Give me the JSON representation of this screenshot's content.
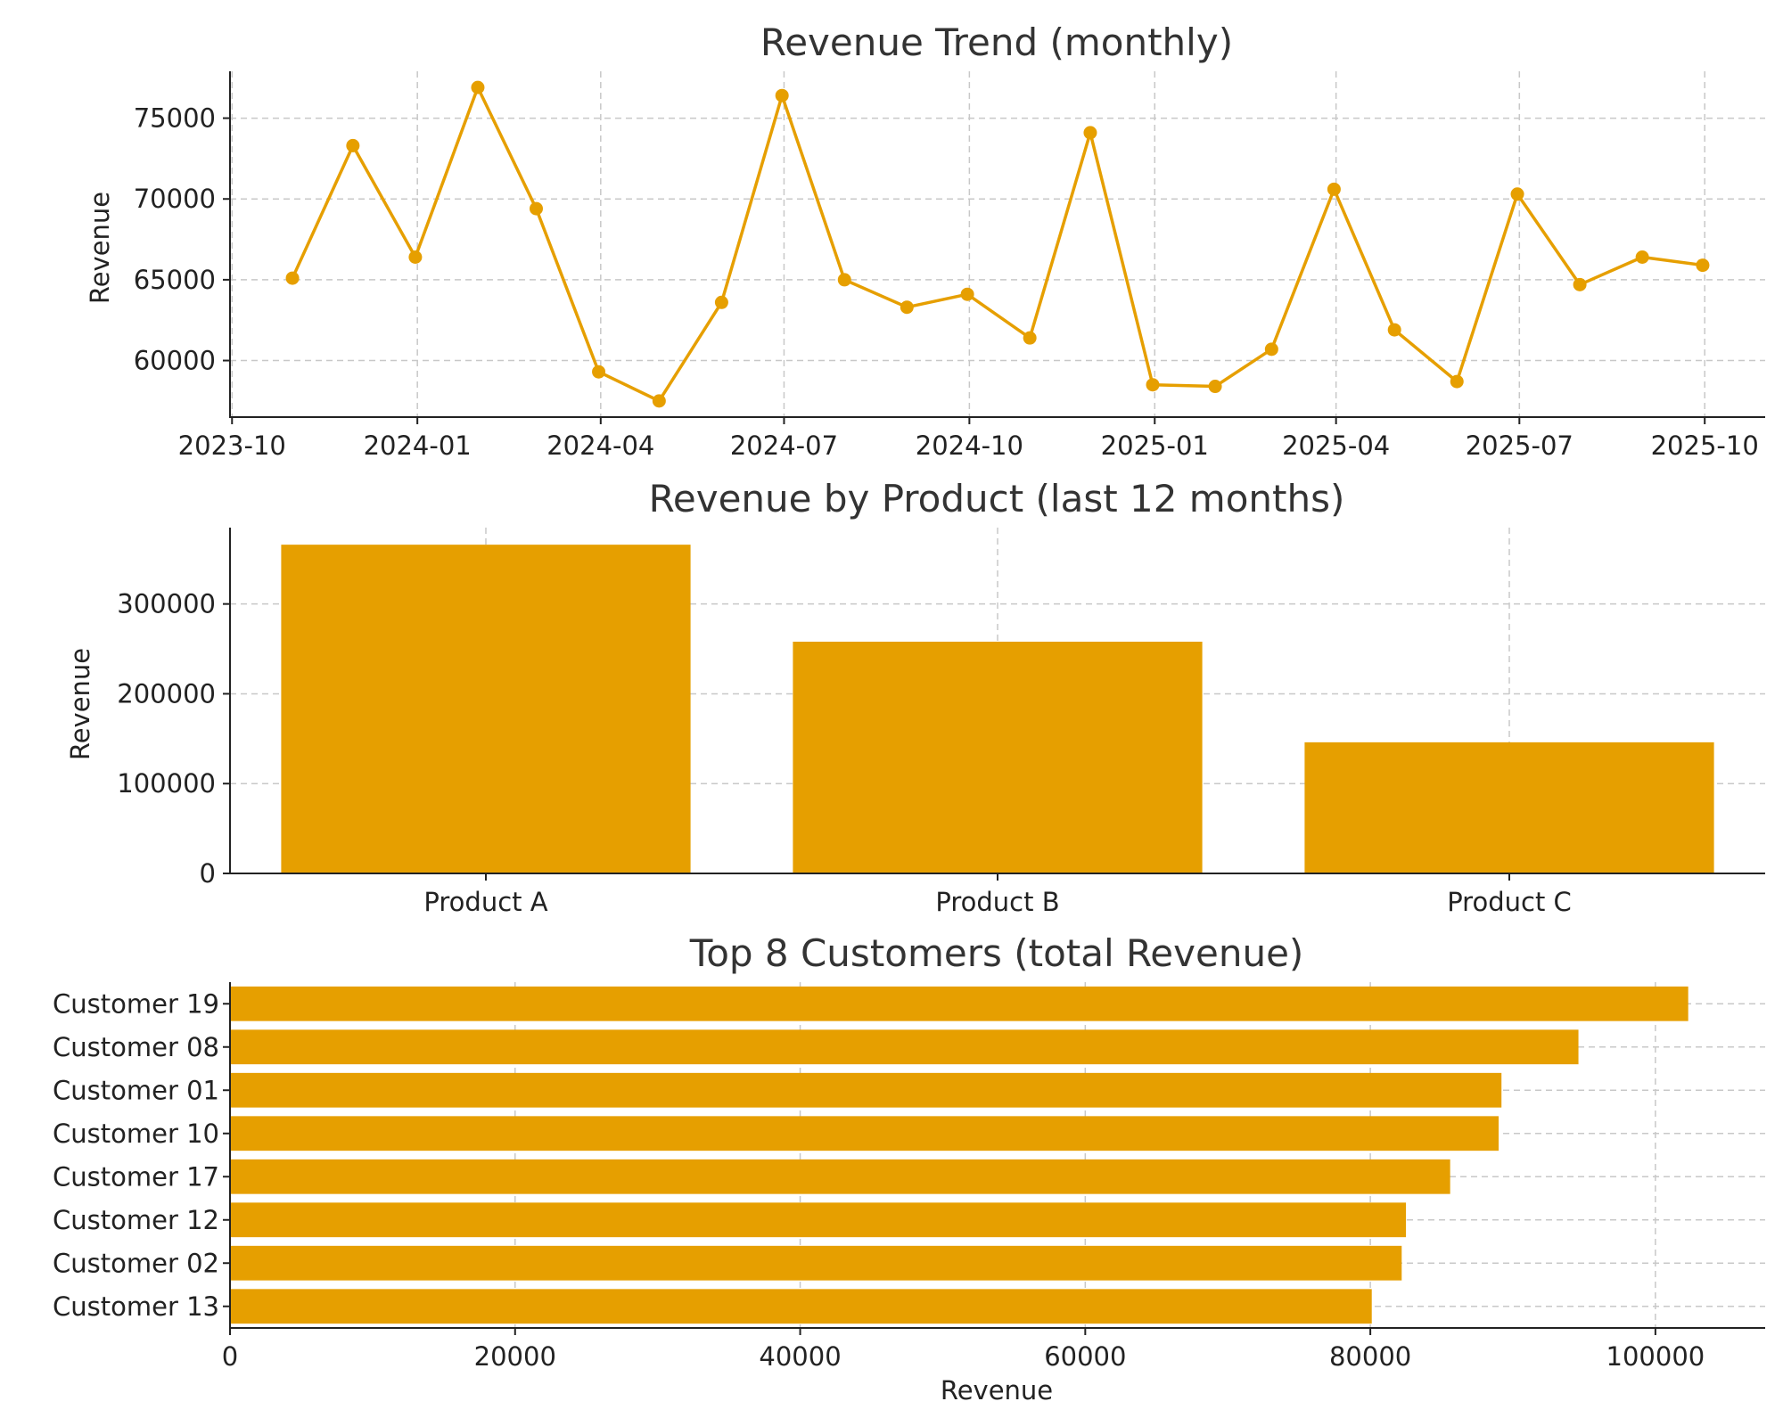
{
  "chart_data": [
    {
      "type": "line",
      "title": "Revenue Trend (monthly)",
      "xlabel": "",
      "ylabel": "Revenue",
      "color": "#E69F00",
      "grid": true,
      "xlim": [
        "2023-09-30",
        "2025-10-31"
      ],
      "ylim": [
        56500,
        77900
      ],
      "x_ticks": [
        "2023-10",
        "2024-01",
        "2024-04",
        "2024-07",
        "2024-10",
        "2025-01",
        "2025-04",
        "2025-07",
        "2025-10"
      ],
      "x_tick_dates": [
        "2023-10-01",
        "2024-01-01",
        "2024-04-01",
        "2024-07-01",
        "2024-10-01",
        "2025-01-01",
        "2025-04-01",
        "2025-07-01",
        "2025-10-01"
      ],
      "y_ticks": [
        60000,
        65000,
        70000,
        75000
      ],
      "x": [
        "2023-10-31",
        "2023-11-30",
        "2023-12-31",
        "2024-01-31",
        "2024-02-29",
        "2024-03-31",
        "2024-04-30",
        "2024-05-31",
        "2024-06-30",
        "2024-07-31",
        "2024-08-31",
        "2024-09-30",
        "2024-10-31",
        "2024-11-30",
        "2024-12-31",
        "2025-01-31",
        "2025-02-28",
        "2025-03-31",
        "2025-04-30",
        "2025-05-31",
        "2025-06-30",
        "2025-07-31",
        "2025-08-31",
        "2025-09-30"
      ],
      "values": [
        65100,
        73300,
        66400,
        76900,
        69400,
        59300,
        57500,
        63600,
        76400,
        65000,
        63300,
        64100,
        61400,
        74100,
        58500,
        58400,
        60700,
        70600,
        61900,
        58700,
        70300,
        64700,
        66400,
        65900
      ]
    },
    {
      "type": "bar",
      "title": "Revenue by Product (last 12 months)",
      "xlabel": "",
      "ylabel": "Revenue",
      "color": "#E69F00",
      "grid": true,
      "ylim": [
        0,
        385000
      ],
      "y_ticks": [
        0,
        100000,
        200000,
        300000
      ],
      "categories": [
        "Product A",
        "Product B",
        "Product C"
      ],
      "values": [
        366000,
        258000,
        146000
      ]
    },
    {
      "type": "bar",
      "orientation": "horizontal",
      "title": "Top 8 Customers (total Revenue)",
      "xlabel": "Revenue",
      "ylabel": "",
      "color": "#E69F00",
      "grid": true,
      "xlim": [
        0,
        107700
      ],
      "x_ticks": [
        0,
        20000,
        40000,
        60000,
        80000,
        100000
      ],
      "categories": [
        "Customer 19",
        "Customer 08",
        "Customer 01",
        "Customer 10",
        "Customer 17",
        "Customer 12",
        "Customer 02",
        "Customer 13"
      ],
      "values": [
        102300,
        94600,
        89200,
        89000,
        85600,
        82500,
        82200,
        80100
      ]
    }
  ]
}
